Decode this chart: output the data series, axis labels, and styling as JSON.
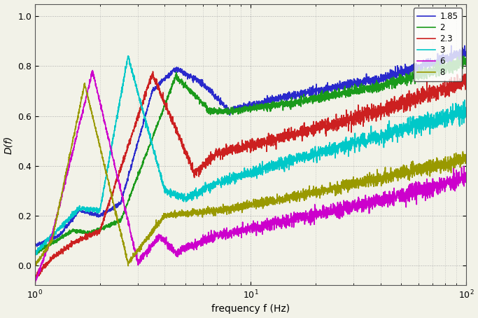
{
  "xlabel": "frequency f (Hz)",
  "ylabel": "D(f)",
  "xlim": [
    1.0,
    100.0
  ],
  "ylim": [
    -0.08,
    1.05
  ],
  "legend_labels": [
    "1.85",
    "2",
    "2.3",
    "3",
    "6",
    "8"
  ],
  "colors": [
    "#2929cc",
    "#1a9a1a",
    "#cc2020",
    "#00c8c8",
    "#cc00cc",
    "#999900"
  ],
  "grid_color": "#aaaaaa",
  "background_color": "#f2f2e8",
  "seed": 42,
  "noise_levels": [
    0.012,
    0.012,
    0.018,
    0.018,
    0.018,
    0.015
  ],
  "linewidth": 1.2,
  "N": 3000
}
